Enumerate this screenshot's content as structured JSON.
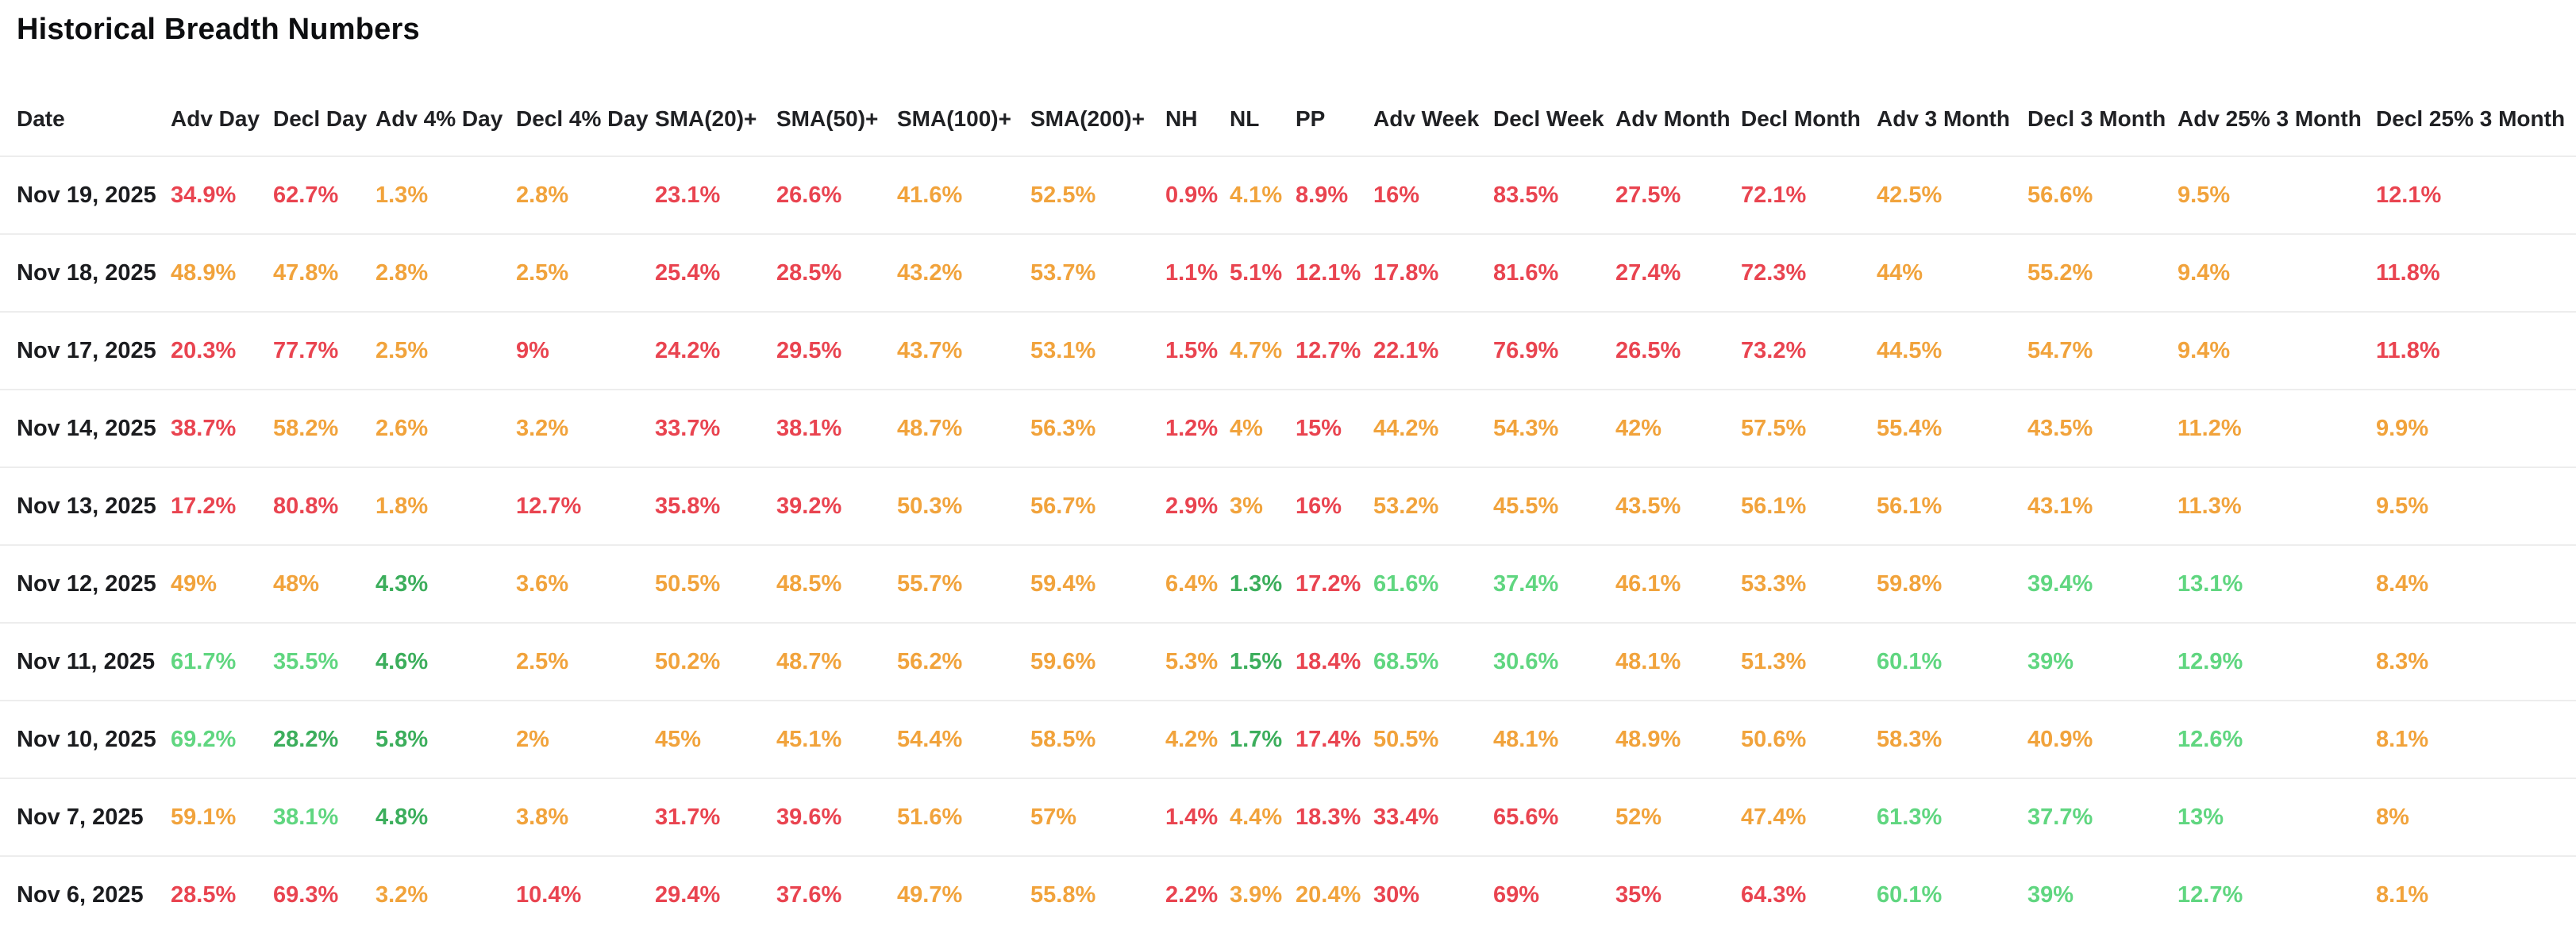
{
  "title": "Historical Breadth Numbers",
  "colors": {
    "red": "#e94450",
    "orange": "#f1a33c",
    "green": "#3cae5c",
    "lightgreen": "#60d680",
    "header": "#202124",
    "date": "#1b1c1f",
    "separator": "#ededed"
  },
  "table": {
    "columns": [
      "Date",
      "Adv Day",
      "Decl Day",
      "Adv 4% Day",
      "Decl 4% Day",
      "SMA(20)+",
      "SMA(50)+",
      "SMA(100)+",
      "SMA(200)+",
      "NH",
      "NL",
      "PP",
      "Adv Week",
      "Decl Week",
      "Adv Month",
      "Decl Month",
      "Adv 3 Month",
      "Decl 3 Month",
      "Adv 25% 3 Month",
      "Decl 25% 3 Month"
    ],
    "rows": [
      {
        "date": "Nov 19, 2025",
        "cells": [
          [
            "34.9%",
            "red"
          ],
          [
            "62.7%",
            "red"
          ],
          [
            "1.3%",
            "orange"
          ],
          [
            "2.8%",
            "orange"
          ],
          [
            "23.1%",
            "red"
          ],
          [
            "26.6%",
            "red"
          ],
          [
            "41.6%",
            "orange"
          ],
          [
            "52.5%",
            "orange"
          ],
          [
            "0.9%",
            "red"
          ],
          [
            "4.1%",
            "orange"
          ],
          [
            "8.9%",
            "red"
          ],
          [
            "16%",
            "red"
          ],
          [
            "83.5%",
            "red"
          ],
          [
            "27.5%",
            "red"
          ],
          [
            "72.1%",
            "red"
          ],
          [
            "42.5%",
            "orange"
          ],
          [
            "56.6%",
            "orange"
          ],
          [
            "9.5%",
            "orange"
          ],
          [
            "12.1%",
            "red"
          ]
        ]
      },
      {
        "date": "Nov 18, 2025",
        "cells": [
          [
            "48.9%",
            "orange"
          ],
          [
            "47.8%",
            "orange"
          ],
          [
            "2.8%",
            "orange"
          ],
          [
            "2.5%",
            "orange"
          ],
          [
            "25.4%",
            "red"
          ],
          [
            "28.5%",
            "red"
          ],
          [
            "43.2%",
            "orange"
          ],
          [
            "53.7%",
            "orange"
          ],
          [
            "1.1%",
            "red"
          ],
          [
            "5.1%",
            "red"
          ],
          [
            "12.1%",
            "red"
          ],
          [
            "17.8%",
            "red"
          ],
          [
            "81.6%",
            "red"
          ],
          [
            "27.4%",
            "red"
          ],
          [
            "72.3%",
            "red"
          ],
          [
            "44%",
            "orange"
          ],
          [
            "55.2%",
            "orange"
          ],
          [
            "9.4%",
            "orange"
          ],
          [
            "11.8%",
            "red"
          ]
        ]
      },
      {
        "date": "Nov 17, 2025",
        "cells": [
          [
            "20.3%",
            "red"
          ],
          [
            "77.7%",
            "red"
          ],
          [
            "2.5%",
            "orange"
          ],
          [
            "9%",
            "red"
          ],
          [
            "24.2%",
            "red"
          ],
          [
            "29.5%",
            "red"
          ],
          [
            "43.7%",
            "orange"
          ],
          [
            "53.1%",
            "orange"
          ],
          [
            "1.5%",
            "red"
          ],
          [
            "4.7%",
            "orange"
          ],
          [
            "12.7%",
            "red"
          ],
          [
            "22.1%",
            "red"
          ],
          [
            "76.9%",
            "red"
          ],
          [
            "26.5%",
            "red"
          ],
          [
            "73.2%",
            "red"
          ],
          [
            "44.5%",
            "orange"
          ],
          [
            "54.7%",
            "orange"
          ],
          [
            "9.4%",
            "orange"
          ],
          [
            "11.8%",
            "red"
          ]
        ]
      },
      {
        "date": "Nov 14, 2025",
        "cells": [
          [
            "38.7%",
            "red"
          ],
          [
            "58.2%",
            "orange"
          ],
          [
            "2.6%",
            "orange"
          ],
          [
            "3.2%",
            "orange"
          ],
          [
            "33.7%",
            "red"
          ],
          [
            "38.1%",
            "red"
          ],
          [
            "48.7%",
            "orange"
          ],
          [
            "56.3%",
            "orange"
          ],
          [
            "1.2%",
            "red"
          ],
          [
            "4%",
            "orange"
          ],
          [
            "15%",
            "red"
          ],
          [
            "44.2%",
            "orange"
          ],
          [
            "54.3%",
            "orange"
          ],
          [
            "42%",
            "orange"
          ],
          [
            "57.5%",
            "orange"
          ],
          [
            "55.4%",
            "orange"
          ],
          [
            "43.5%",
            "orange"
          ],
          [
            "11.2%",
            "orange"
          ],
          [
            "9.9%",
            "orange"
          ]
        ]
      },
      {
        "date": "Nov 13, 2025",
        "cells": [
          [
            "17.2%",
            "red"
          ],
          [
            "80.8%",
            "red"
          ],
          [
            "1.8%",
            "orange"
          ],
          [
            "12.7%",
            "red"
          ],
          [
            "35.8%",
            "red"
          ],
          [
            "39.2%",
            "red"
          ],
          [
            "50.3%",
            "orange"
          ],
          [
            "56.7%",
            "orange"
          ],
          [
            "2.9%",
            "red"
          ],
          [
            "3%",
            "orange"
          ],
          [
            "16%",
            "red"
          ],
          [
            "53.2%",
            "orange"
          ],
          [
            "45.5%",
            "orange"
          ],
          [
            "43.5%",
            "orange"
          ],
          [
            "56.1%",
            "orange"
          ],
          [
            "56.1%",
            "orange"
          ],
          [
            "43.1%",
            "orange"
          ],
          [
            "11.3%",
            "orange"
          ],
          [
            "9.5%",
            "orange"
          ]
        ]
      },
      {
        "date": "Nov 12, 2025",
        "cells": [
          [
            "49%",
            "orange"
          ],
          [
            "48%",
            "orange"
          ],
          [
            "4.3%",
            "green"
          ],
          [
            "3.6%",
            "orange"
          ],
          [
            "50.5%",
            "orange"
          ],
          [
            "48.5%",
            "orange"
          ],
          [
            "55.7%",
            "orange"
          ],
          [
            "59.4%",
            "orange"
          ],
          [
            "6.4%",
            "orange"
          ],
          [
            "1.3%",
            "green"
          ],
          [
            "17.2%",
            "red"
          ],
          [
            "61.6%",
            "lightgreen"
          ],
          [
            "37.4%",
            "lightgreen"
          ],
          [
            "46.1%",
            "orange"
          ],
          [
            "53.3%",
            "orange"
          ],
          [
            "59.8%",
            "orange"
          ],
          [
            "39.4%",
            "lightgreen"
          ],
          [
            "13.1%",
            "lightgreen"
          ],
          [
            "8.4%",
            "orange"
          ]
        ]
      },
      {
        "date": "Nov 11, 2025",
        "cells": [
          [
            "61.7%",
            "lightgreen"
          ],
          [
            "35.5%",
            "lightgreen"
          ],
          [
            "4.6%",
            "green"
          ],
          [
            "2.5%",
            "orange"
          ],
          [
            "50.2%",
            "orange"
          ],
          [
            "48.7%",
            "orange"
          ],
          [
            "56.2%",
            "orange"
          ],
          [
            "59.6%",
            "orange"
          ],
          [
            "5.3%",
            "orange"
          ],
          [
            "1.5%",
            "green"
          ],
          [
            "18.4%",
            "red"
          ],
          [
            "68.5%",
            "lightgreen"
          ],
          [
            "30.6%",
            "lightgreen"
          ],
          [
            "48.1%",
            "orange"
          ],
          [
            "51.3%",
            "orange"
          ],
          [
            "60.1%",
            "lightgreen"
          ],
          [
            "39%",
            "lightgreen"
          ],
          [
            "12.9%",
            "lightgreen"
          ],
          [
            "8.3%",
            "orange"
          ]
        ]
      },
      {
        "date": "Nov 10, 2025",
        "cells": [
          [
            "69.2%",
            "lightgreen"
          ],
          [
            "28.2%",
            "green"
          ],
          [
            "5.8%",
            "green"
          ],
          [
            "2%",
            "orange"
          ],
          [
            "45%",
            "orange"
          ],
          [
            "45.1%",
            "orange"
          ],
          [
            "54.4%",
            "orange"
          ],
          [
            "58.5%",
            "orange"
          ],
          [
            "4.2%",
            "orange"
          ],
          [
            "1.7%",
            "green"
          ],
          [
            "17.4%",
            "red"
          ],
          [
            "50.5%",
            "orange"
          ],
          [
            "48.1%",
            "orange"
          ],
          [
            "48.9%",
            "orange"
          ],
          [
            "50.6%",
            "orange"
          ],
          [
            "58.3%",
            "orange"
          ],
          [
            "40.9%",
            "orange"
          ],
          [
            "12.6%",
            "lightgreen"
          ],
          [
            "8.1%",
            "orange"
          ]
        ]
      },
      {
        "date": "Nov 7, 2025",
        "cells": [
          [
            "59.1%",
            "orange"
          ],
          [
            "38.1%",
            "lightgreen"
          ],
          [
            "4.8%",
            "green"
          ],
          [
            "3.8%",
            "orange"
          ],
          [
            "31.7%",
            "red"
          ],
          [
            "39.6%",
            "red"
          ],
          [
            "51.6%",
            "orange"
          ],
          [
            "57%",
            "orange"
          ],
          [
            "1.4%",
            "red"
          ],
          [
            "4.4%",
            "orange"
          ],
          [
            "18.3%",
            "red"
          ],
          [
            "33.4%",
            "red"
          ],
          [
            "65.6%",
            "red"
          ],
          [
            "52%",
            "orange"
          ],
          [
            "47.4%",
            "orange"
          ],
          [
            "61.3%",
            "lightgreen"
          ],
          [
            "37.7%",
            "lightgreen"
          ],
          [
            "13%",
            "lightgreen"
          ],
          [
            "8%",
            "orange"
          ]
        ]
      },
      {
        "date": "Nov 6, 2025",
        "cells": [
          [
            "28.5%",
            "red"
          ],
          [
            "69.3%",
            "red"
          ],
          [
            "3.2%",
            "orange"
          ],
          [
            "10.4%",
            "red"
          ],
          [
            "29.4%",
            "red"
          ],
          [
            "37.6%",
            "red"
          ],
          [
            "49.7%",
            "orange"
          ],
          [
            "55.8%",
            "orange"
          ],
          [
            "2.2%",
            "red"
          ],
          [
            "3.9%",
            "orange"
          ],
          [
            "20.4%",
            "orange"
          ],
          [
            "30%",
            "red"
          ],
          [
            "69%",
            "red"
          ],
          [
            "35%",
            "red"
          ],
          [
            "64.3%",
            "red"
          ],
          [
            "60.1%",
            "lightgreen"
          ],
          [
            "39%",
            "lightgreen"
          ],
          [
            "12.7%",
            "lightgreen"
          ],
          [
            "8.1%",
            "orange"
          ]
        ]
      }
    ]
  }
}
